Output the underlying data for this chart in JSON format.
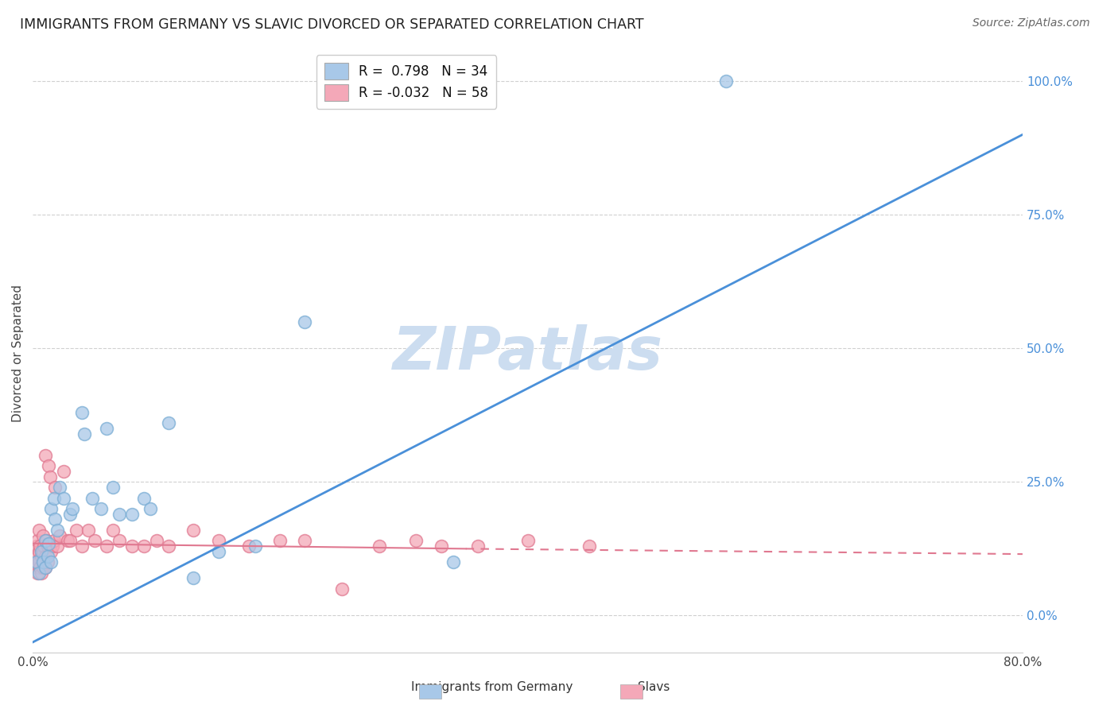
{
  "title": "IMMIGRANTS FROM GERMANY VS SLAVIC DIVORCED OR SEPARATED CORRELATION CHART",
  "source": "Source: ZipAtlas.com",
  "ylabel": "Divorced or Separated",
  "xlim": [
    0.0,
    0.8
  ],
  "ylim": [
    -0.07,
    1.05
  ],
  "germany_R": 0.798,
  "germany_N": 34,
  "slavic_R": -0.032,
  "slavic_N": 58,
  "germany_color": "#a8c8e8",
  "germany_edge_color": "#7aadd4",
  "slavic_color": "#f4a8b8",
  "slavic_edge_color": "#e07890",
  "germany_line_color": "#4a90d9",
  "slavic_line_solid_color": "#e07890",
  "slavic_line_dash_color": "#e07890",
  "background_color": "#ffffff",
  "grid_color": "#d0d0d0",
  "watermark": "ZIPatlas",
  "watermark_color": "#ccddf0",
  "ytick_right_labels": [
    "0.0%",
    "25.0%",
    "50.0%",
    "75.0%",
    "100.0%"
  ],
  "ytick_right_vals": [
    0.0,
    0.25,
    0.5,
    0.75,
    1.0
  ],
  "germany_line_x0": 0.0,
  "germany_line_y0": -0.05,
  "germany_line_x1": 0.8,
  "germany_line_y1": 0.9,
  "slavic_line_solid_x0": 0.0,
  "slavic_line_solid_y0": 0.135,
  "slavic_line_solid_x1": 0.35,
  "slavic_line_solid_y1": 0.125,
  "slavic_line_dash_x0": 0.35,
  "slavic_line_dash_y0": 0.125,
  "slavic_line_dash_x1": 0.8,
  "slavic_line_dash_y1": 0.115,
  "germany_x": [
    0.003,
    0.005,
    0.007,
    0.008,
    0.01,
    0.01,
    0.012,
    0.013,
    0.015,
    0.015,
    0.017,
    0.018,
    0.02,
    0.022,
    0.025,
    0.03,
    0.032,
    0.04,
    0.042,
    0.048,
    0.055,
    0.06,
    0.065,
    0.07,
    0.08,
    0.09,
    0.095,
    0.11,
    0.13,
    0.15,
    0.18,
    0.22,
    0.34,
    0.56
  ],
  "germany_y": [
    0.1,
    0.08,
    0.12,
    0.1,
    0.09,
    0.14,
    0.11,
    0.135,
    0.1,
    0.2,
    0.22,
    0.18,
    0.16,
    0.24,
    0.22,
    0.19,
    0.2,
    0.38,
    0.34,
    0.22,
    0.2,
    0.35,
    0.24,
    0.19,
    0.19,
    0.22,
    0.2,
    0.36,
    0.07,
    0.12,
    0.13,
    0.55,
    0.1,
    1.0
  ],
  "slavic_x": [
    0.002,
    0.003,
    0.003,
    0.004,
    0.004,
    0.004,
    0.005,
    0.005,
    0.005,
    0.006,
    0.006,
    0.007,
    0.007,
    0.008,
    0.008,
    0.008,
    0.009,
    0.009,
    0.01,
    0.01,
    0.01,
    0.011,
    0.012,
    0.012,
    0.013,
    0.014,
    0.015,
    0.016,
    0.017,
    0.018,
    0.02,
    0.022,
    0.025,
    0.028,
    0.03,
    0.035,
    0.04,
    0.045,
    0.05,
    0.06,
    0.065,
    0.07,
    0.08,
    0.09,
    0.1,
    0.11,
    0.13,
    0.15,
    0.175,
    0.2,
    0.22,
    0.25,
    0.28,
    0.31,
    0.33,
    0.36,
    0.4,
    0.45
  ],
  "slavic_y": [
    0.1,
    0.09,
    0.13,
    0.11,
    0.08,
    0.14,
    0.1,
    0.12,
    0.16,
    0.09,
    0.13,
    0.08,
    0.11,
    0.09,
    0.12,
    0.15,
    0.1,
    0.13,
    0.09,
    0.11,
    0.3,
    0.14,
    0.1,
    0.13,
    0.28,
    0.26,
    0.12,
    0.13,
    0.14,
    0.24,
    0.13,
    0.15,
    0.27,
    0.14,
    0.14,
    0.16,
    0.13,
    0.16,
    0.14,
    0.13,
    0.16,
    0.14,
    0.13,
    0.13,
    0.14,
    0.13,
    0.16,
    0.14,
    0.13,
    0.14,
    0.14,
    0.05,
    0.13,
    0.14,
    0.13,
    0.13,
    0.14,
    0.13
  ]
}
